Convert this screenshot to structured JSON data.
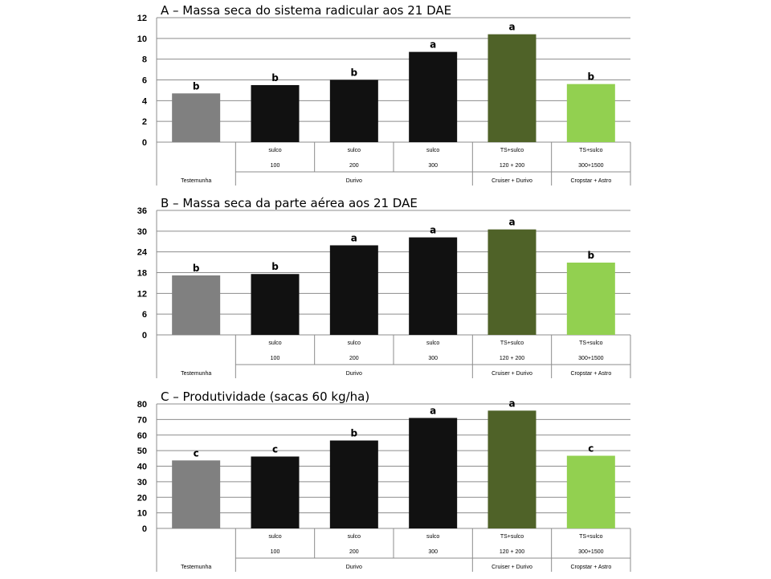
{
  "chart_data": [
    {
      "type": "bar",
      "title": "A – Massa seca do sistema radicular aos 21 DAE",
      "ylim": [
        0,
        12
      ],
      "yticks": [
        0,
        2,
        4,
        6,
        8,
        10,
        12
      ],
      "categories": [
        "Testemunha",
        "Durivo sulco 100",
        "Durivo sulco 200",
        "Durivo sulco 300",
        "Cruiser + Durivo TS+sulco 120 + 200",
        "Cropstar + Astro TS+sulco 300+1500"
      ],
      "values": [
        4.7,
        5.5,
        6.0,
        8.7,
        10.4,
        5.6
      ],
      "letters": [
        "b",
        "b",
        "b",
        "a",
        "a",
        "b"
      ]
    },
    {
      "type": "bar",
      "title": "B – Massa seca da parte aérea aos 21 DAE",
      "ylim": [
        0,
        36
      ],
      "yticks": [
        0,
        6,
        12,
        18,
        24,
        30,
        36
      ],
      "categories": [
        "Testemunha",
        "Durivo sulco 100",
        "Durivo sulco 200",
        "Durivo sulco 300",
        "Cruiser + Durivo TS+sulco 120 + 200",
        "Cropstar + Astro TS+sulco 300+1500"
      ],
      "values": [
        17.2,
        17.6,
        25.9,
        28.2,
        30.5,
        20.9
      ],
      "letters": [
        "b",
        "b",
        "a",
        "a",
        "a",
        "b"
      ]
    },
    {
      "type": "bar",
      "title": "C – Produtividade (sacas 60 kg/ha)",
      "ylim": [
        0,
        80
      ],
      "yticks": [
        0,
        10,
        20,
        30,
        40,
        50,
        60,
        70,
        80
      ],
      "categories": [
        "Testemunha",
        "Durivo sulco 100",
        "Durivo sulco 200",
        "Durivo sulco 300",
        "Cruiser + Durivo TS+sulco 120 + 200",
        "Cropstar + Astro TS+sulco 300+1500"
      ],
      "values": [
        43.7,
        46.2,
        56.5,
        71.0,
        75.7,
        46.7
      ],
      "letters": [
        "c",
        "c",
        "b",
        "a",
        "a",
        "c"
      ]
    }
  ],
  "axis_table": {
    "row1": [
      "",
      "sulco",
      "sulco",
      "sulco",
      "TS+sulco",
      "TS+sulco"
    ],
    "row2": [
      "",
      "100",
      "200",
      "300",
      "120 + 200",
      "300+1500"
    ],
    "groups": [
      "Testemunha",
      "Durivo",
      "Cruiser + Durivo",
      "Cropstar + Astro"
    ]
  },
  "bar_colors": [
    "#808080",
    "#111111",
    "#111111",
    "#111111",
    "#4f6228",
    "#92d050"
  ],
  "grid_color": "#8c8c8c"
}
